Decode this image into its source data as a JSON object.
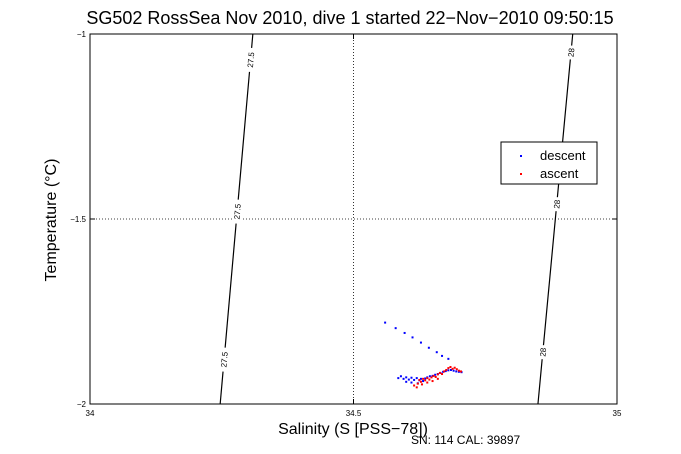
{
  "chart_data": {
    "type": "scatter",
    "title": "SG502 RossSea Nov 2010, dive 1 started 22−Nov−2010 09:50:15",
    "xlabel": "Salinity (S [PSS−78])",
    "ylabel": "Temperature (°C)",
    "xlim": [
      34,
      35
    ],
    "ylim": [
      -2,
      -1
    ],
    "x_ticks": [
      {
        "value": 34,
        "label": "34"
      },
      {
        "value": 34.5,
        "label": "34.5"
      },
      {
        "value": 35,
        "label": "35"
      }
    ],
    "y_ticks": [
      {
        "value": -2,
        "label": "−2"
      },
      {
        "value": -1.5,
        "label": "−1.5"
      },
      {
        "value": -1,
        "label": "−1"
      }
    ],
    "grid": true,
    "legend_position": "right",
    "footer": "SN: 114  CAL: 39897",
    "contours": [
      {
        "density": "27.5",
        "points": [
          [
            34.309,
            -1.0
          ],
          [
            34.247,
            -2.0
          ]
        ],
        "labels": [
          {
            "text": "27.5",
            "t": 0.07
          },
          {
            "text": "27.5",
            "t": 0.48
          },
          {
            "text": "27.5",
            "t": 0.88
          }
        ]
      },
      {
        "density": "28",
        "points": [
          [
            34.916,
            -1.0
          ],
          [
            34.85,
            -2.0
          ]
        ],
        "labels": [
          {
            "text": "28",
            "t": 0.05
          },
          {
            "text": "28",
            "t": 0.46
          },
          {
            "text": "28",
            "t": 0.86
          }
        ]
      }
    ],
    "series": [
      {
        "name": "descent",
        "color": "#0000ff",
        "points": [
          [
            34.56,
            -1.78
          ],
          [
            34.58,
            -1.795
          ],
          [
            34.597,
            -1.808
          ],
          [
            34.612,
            -1.82
          ],
          [
            34.628,
            -1.834
          ],
          [
            34.643,
            -1.848
          ],
          [
            34.658,
            -1.86
          ],
          [
            34.668,
            -1.87
          ],
          [
            34.68,
            -1.878
          ],
          [
            34.585,
            -1.93
          ],
          [
            34.59,
            -1.925
          ],
          [
            34.595,
            -1.932
          ],
          [
            34.6,
            -1.928
          ],
          [
            34.605,
            -1.934
          ],
          [
            34.61,
            -1.929
          ],
          [
            34.615,
            -1.935
          ],
          [
            34.62,
            -1.93
          ],
          [
            34.625,
            -1.936
          ],
          [
            34.628,
            -1.932
          ],
          [
            34.632,
            -1.938
          ],
          [
            34.636,
            -1.931
          ],
          [
            34.64,
            -1.928
          ],
          [
            34.645,
            -1.925
          ],
          [
            34.65,
            -1.924
          ],
          [
            34.655,
            -1.921
          ],
          [
            34.66,
            -1.919
          ],
          [
            34.665,
            -1.916
          ],
          [
            34.67,
            -1.913
          ],
          [
            34.675,
            -1.911
          ],
          [
            34.68,
            -1.909
          ],
          [
            34.685,
            -1.908
          ],
          [
            34.69,
            -1.91
          ],
          [
            34.695,
            -1.912
          ],
          [
            34.7,
            -1.913
          ],
          [
            34.705,
            -1.914
          ],
          [
            34.6,
            -1.94
          ],
          [
            34.61,
            -1.942
          ],
          [
            34.622,
            -1.944
          ]
        ]
      },
      {
        "name": "ascent",
        "color": "#ff0000",
        "points": [
          [
            34.62,
            -1.955
          ],
          [
            34.622,
            -1.945
          ],
          [
            34.625,
            -1.935
          ],
          [
            34.628,
            -1.94
          ],
          [
            34.632,
            -1.932
          ],
          [
            34.636,
            -1.936
          ],
          [
            34.64,
            -1.93
          ],
          [
            34.644,
            -1.934
          ],
          [
            34.648,
            -1.928
          ],
          [
            34.652,
            -1.924
          ],
          [
            34.656,
            -1.927
          ],
          [
            34.66,
            -1.92
          ],
          [
            34.664,
            -1.916
          ],
          [
            34.668,
            -1.919
          ],
          [
            34.672,
            -1.912
          ],
          [
            34.676,
            -1.908
          ],
          [
            34.68,
            -1.903
          ],
          [
            34.684,
            -1.9
          ],
          [
            34.688,
            -1.905
          ],
          [
            34.692,
            -1.902
          ],
          [
            34.696,
            -1.906
          ],
          [
            34.7,
            -1.91
          ],
          [
            34.704,
            -1.912
          ],
          [
            34.64,
            -1.942
          ],
          [
            34.65,
            -1.938
          ],
          [
            34.63,
            -1.947
          ],
          [
            34.615,
            -1.95
          ],
          [
            34.66,
            -1.932
          ]
        ]
      }
    ]
  }
}
